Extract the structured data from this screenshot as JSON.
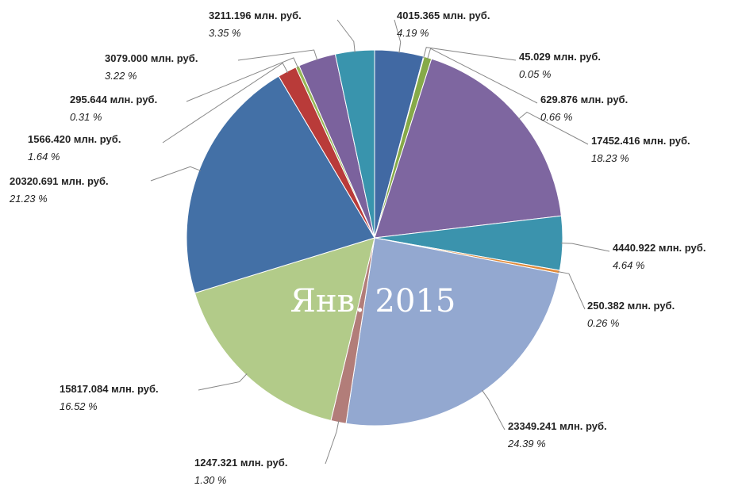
{
  "chart_data": {
    "type": "pie",
    "title": "Янв. 2015",
    "values": [
      4015.365,
      45.029,
      629.876,
      17452.416,
      4440.922,
      250.382,
      23349.241,
      1247.321,
      15817.084,
      20320.691,
      1566.42,
      295.644,
      3079.0,
      3211.196
    ],
    "value_labels": [
      "4015.365 млн. руб.",
      "45.029 млн. руб.",
      "629.876 млн. руб.",
      "17452.416 млн. руб.",
      "4440.922 млн. руб.",
      "250.382 млн. руб.",
      "23349.241 млн. руб.",
      "1247.321 млн. руб.",
      "15817.084 млн. руб.",
      "20320.691 млн. руб.",
      "1566.420 млн. руб.",
      "295.644 млн. руб.",
      "3079.000 млн. руб.",
      "3211.196 млн. руб."
    ],
    "percents": [
      4.19,
      0.05,
      0.66,
      18.23,
      4.64,
      0.26,
      24.39,
      1.3,
      16.52,
      21.23,
      1.64,
      0.31,
      3.22,
      3.35
    ],
    "percent_labels": [
      "4.19 %",
      "0.05 %",
      "0.66 %",
      "18.23 %",
      "4.64 %",
      "0.26 %",
      "24.39 %",
      "1.30 %",
      "16.52 %",
      "21.23 %",
      "1.64 %",
      "0.31 %",
      "3.22 %",
      "3.35 %"
    ],
    "colors": [
      "#4169a3",
      "#5b86bf",
      "#86aa48",
      "#7e66a0",
      "#3b93ad",
      "#e08a3a",
      "#93a8d0",
      "#b27d79",
      "#b2cb89",
      "#4370a6",
      "#b93b39",
      "#97b757",
      "#7b629d",
      "#3994ad"
    ]
  }
}
